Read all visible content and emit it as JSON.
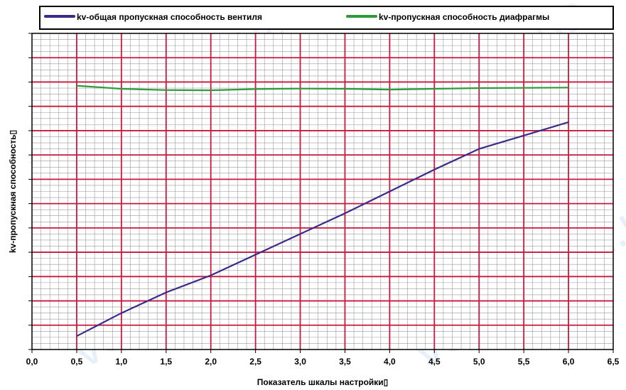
{
  "chart_data": {
    "type": "line",
    "xlabel": "Показатель шкалы настройки▯",
    "ylabel": "kv-пропускная способность▯",
    "xlim": [
      0.0,
      6.5
    ],
    "ylim": [
      0,
      13
    ],
    "x_ticks": [
      "0,0",
      "0,5",
      "1,0",
      "1,5",
      "2,0",
      "2,5",
      "3,0",
      "3,5",
      "4,0",
      "4,5",
      "5,0",
      "5,5",
      "6,0",
      "6,5"
    ],
    "grid": true,
    "legend_position": "top",
    "series": [
      {
        "name": "kv-общая пропускная способность вентиля",
        "color": "#3b2a8a",
        "x": [
          0.5,
          1.0,
          1.5,
          2.0,
          2.5,
          3.0,
          3.5,
          4.0,
          4.5,
          5.0,
          5.5,
          6.0
        ],
        "y": [
          0.55,
          1.5,
          2.35,
          3.05,
          3.9,
          4.75,
          5.6,
          6.5,
          7.4,
          8.25,
          8.8,
          9.35
        ]
      },
      {
        "name": "kv-пропускная способность диафрагмы",
        "color": "#2e9a3a",
        "x": [
          0.5,
          1.0,
          1.5,
          2.0,
          2.5,
          3.0,
          3.5,
          4.0,
          4.5,
          5.0,
          5.5,
          6.0
        ],
        "y": [
          10.85,
          10.72,
          10.67,
          10.66,
          10.71,
          10.73,
          10.72,
          10.69,
          10.72,
          10.75,
          10.76,
          10.77
        ]
      }
    ],
    "watermark": "voltar.com.ua"
  }
}
